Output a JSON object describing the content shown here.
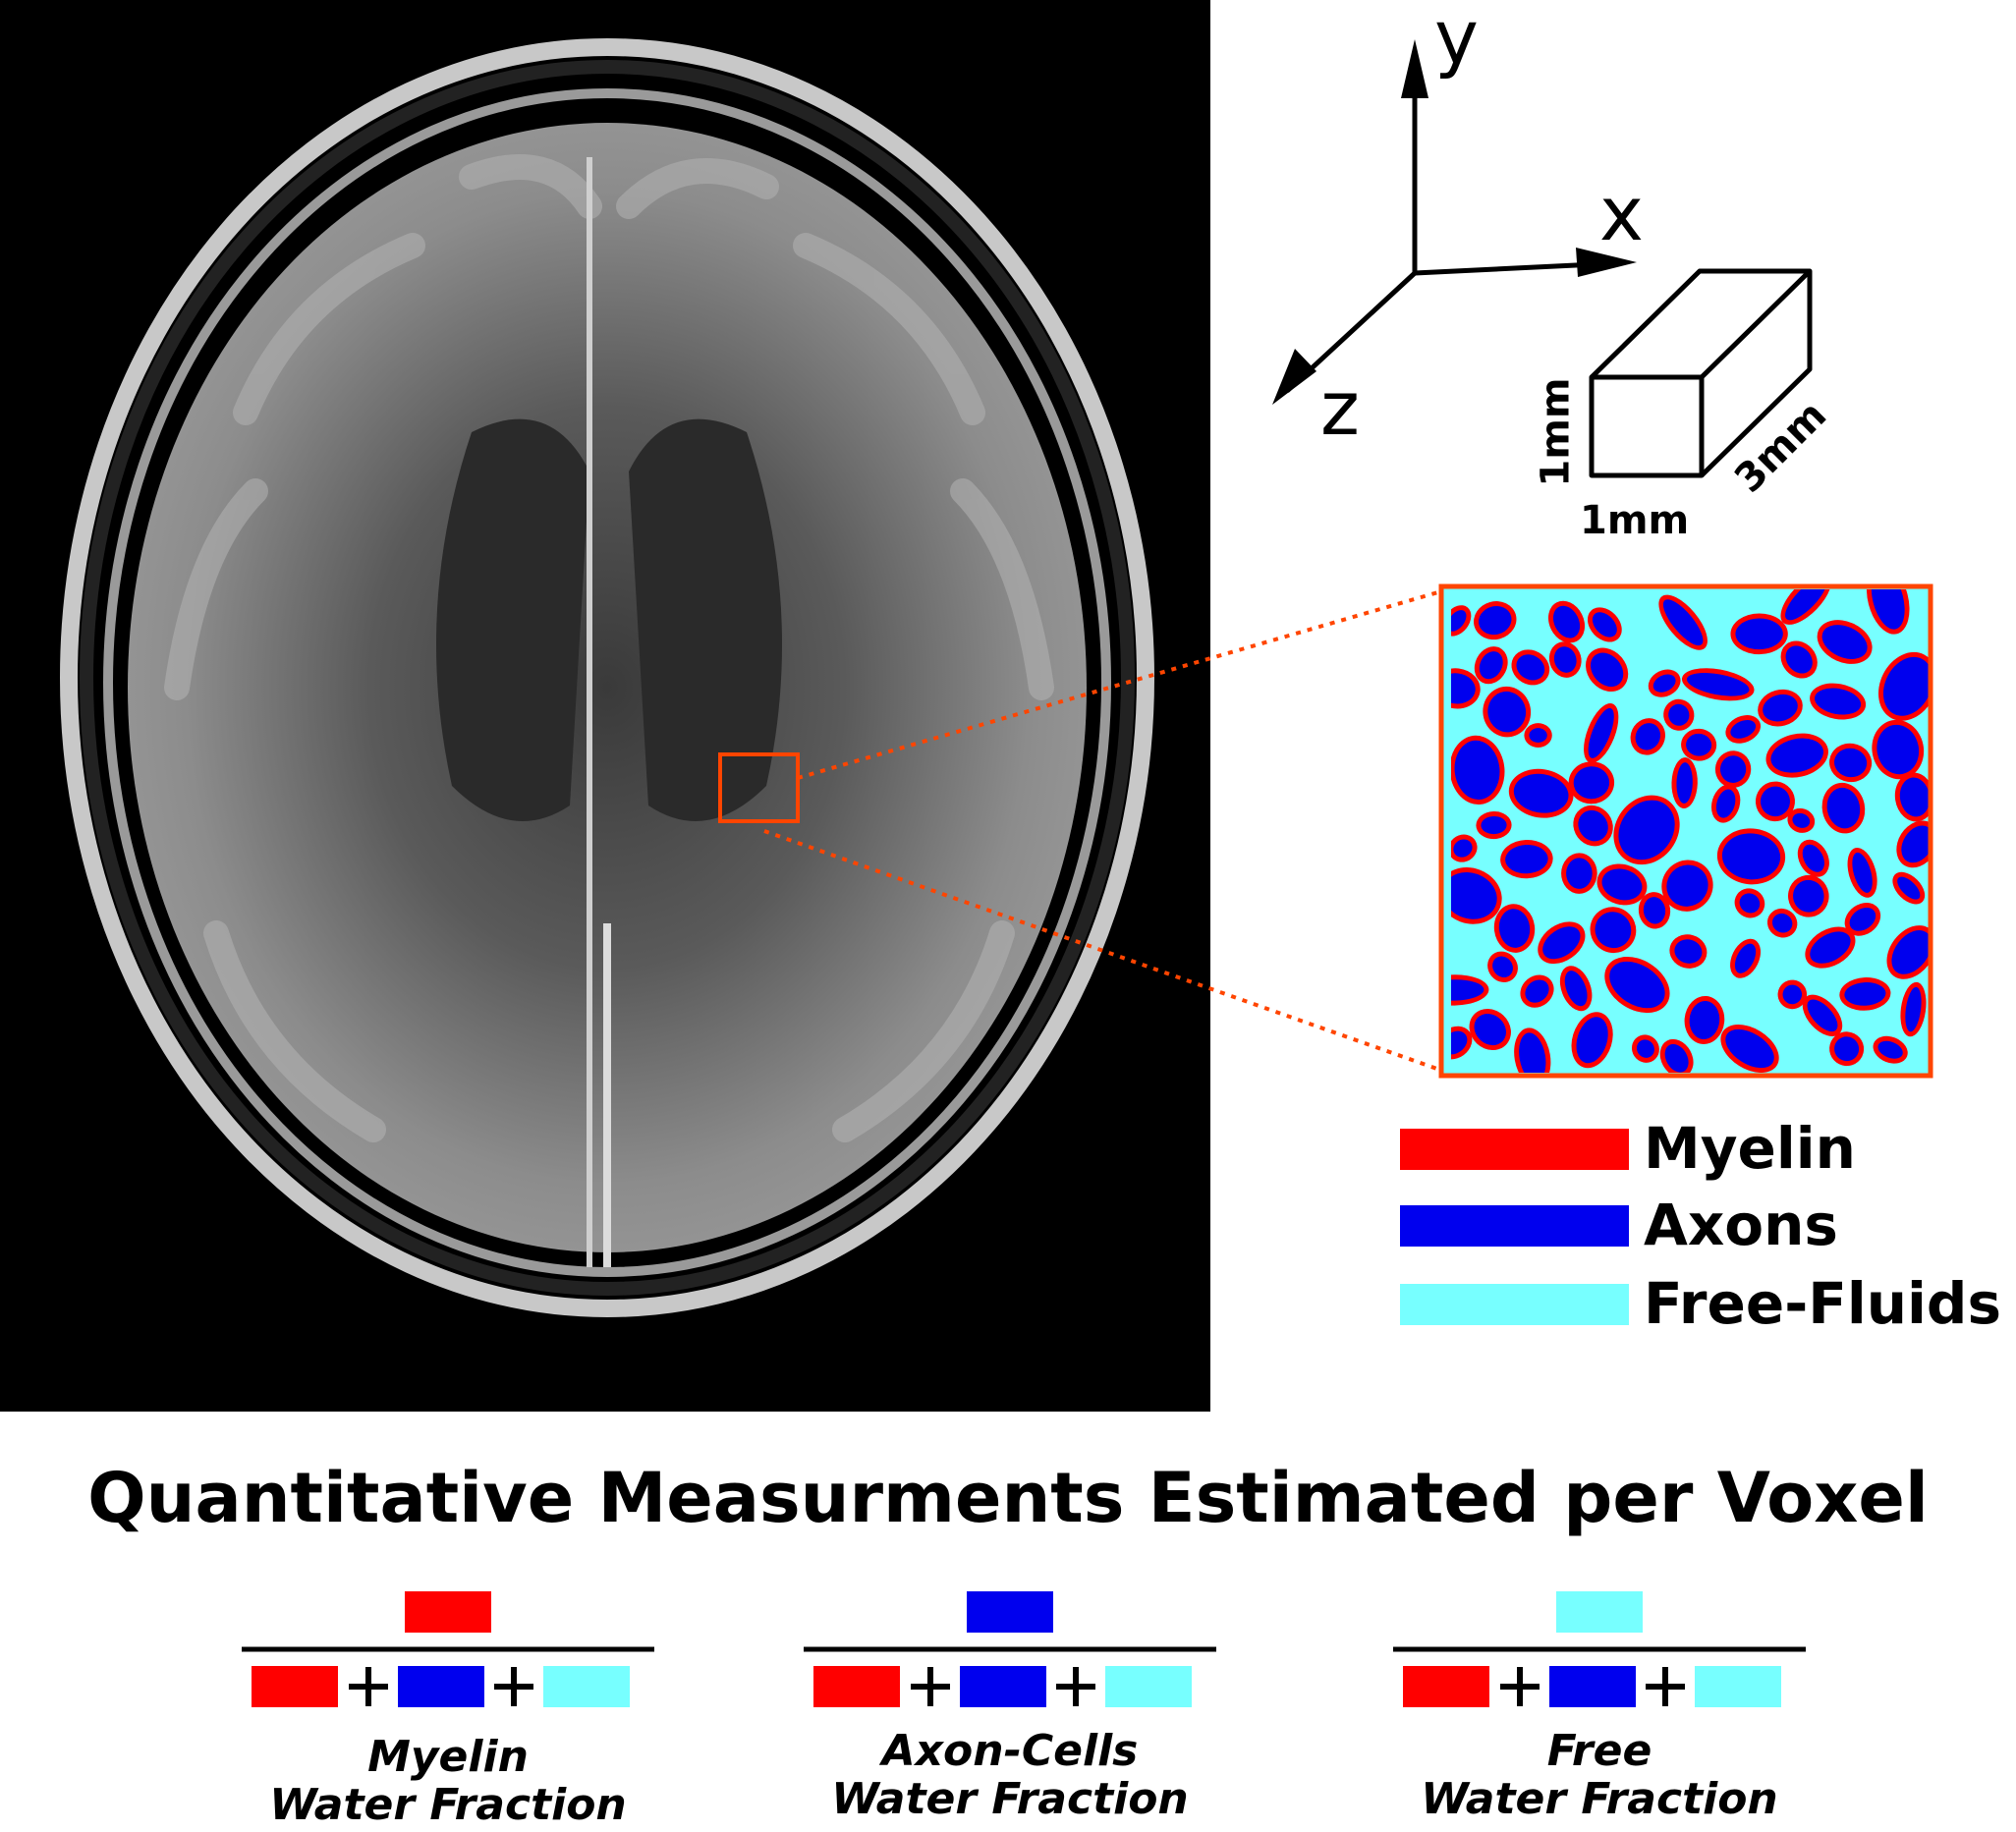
{
  "axes": {
    "y": "y",
    "x": "x",
    "z": "z"
  },
  "voxel": {
    "height": "1mm",
    "width": "1mm",
    "depth": "3mm"
  },
  "legend": [
    {
      "label": "Myelin",
      "color": "#ff0000"
    },
    {
      "label": "Axons",
      "color": "#0000ee"
    },
    {
      "label": "Free-Fluids",
      "color": "#77ffff"
    }
  ],
  "title": "Quantitative Measurments Estimated per Voxel",
  "fractions": [
    {
      "line1": "Myelin",
      "line2": "Water Fraction",
      "numerator_color": "#ff0000"
    },
    {
      "line1": "Axon-Cells",
      "line2": "Water Fraction",
      "numerator_color": "#0000ee"
    },
    {
      "line1": "Free",
      "line2": "Water Fraction",
      "numerator_color": "#77ffff"
    }
  ],
  "colors": {
    "myelin": "#ff0000",
    "axon": "#0000ee",
    "fluid": "#77ffff",
    "highlight": "#ff4500"
  }
}
